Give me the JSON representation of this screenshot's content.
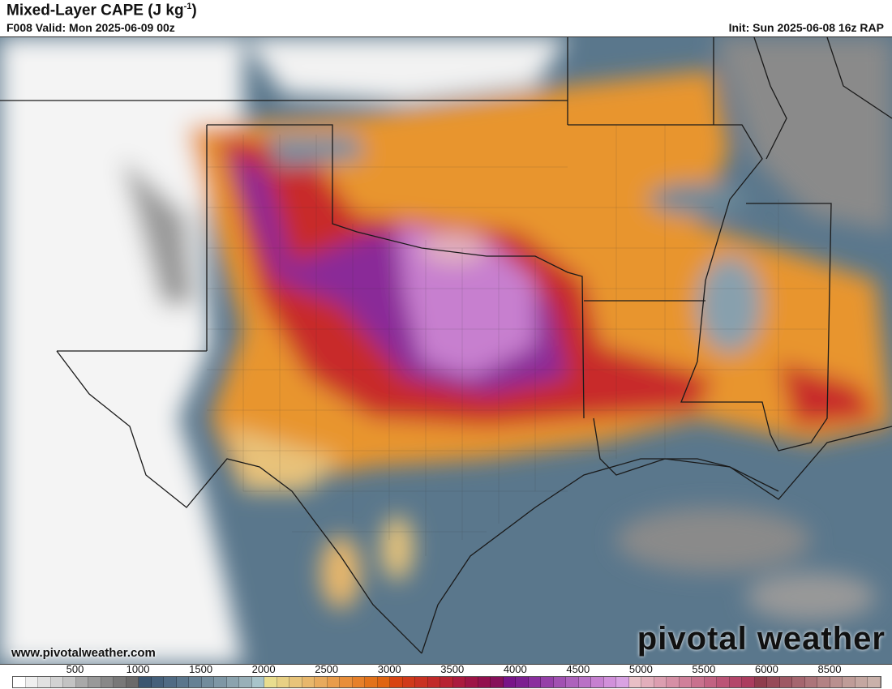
{
  "header": {
    "title": "Mixed-Layer CAPE (J kg",
    "title_sup": "-1",
    "title_end": ")",
    "valid": "F008 Valid: Mon 2025-06-09 00z",
    "init": "Init: Sun 2025-06-08 16z RAP"
  },
  "footer": {
    "url": "www.pivotalweather.com",
    "brand": "pivotal weather"
  },
  "colorbar": {
    "labels": [
      "500",
      "1000",
      "1500",
      "2000",
      "2500",
      "3000",
      "3500",
      "4000",
      "4500",
      "5000",
      "5500",
      "6000",
      "8500"
    ],
    "colors": [
      "#ffffff",
      "#efefef",
      "#e1e1e1",
      "#d2d2d2",
      "#c3c3c3",
      "#a9a9a9",
      "#999999",
      "#888888",
      "#787878",
      "#6a6a6a",
      "#3b5670",
      "#45607a",
      "#506b84",
      "#5b768c",
      "#668194",
      "#728c9c",
      "#7e97a5",
      "#8ba3ae",
      "#99b0b8",
      "#a8c4ca",
      "#e9dd8e",
      "#e8d084",
      "#e8c47a",
      "#e8b76c",
      "#e8aa5d",
      "#e89c4b",
      "#e88e3a",
      "#e6802a",
      "#e2721a",
      "#df6410",
      "#d84412",
      "#d03a1a",
      "#c93222",
      "#c12a2a",
      "#b82232",
      "#ab1a3e",
      "#9e1446",
      "#92104e",
      "#86105a",
      "#781488",
      "#7c1f90",
      "#8a2f9e",
      "#9540a8",
      "#a151b2",
      "#ad62bc",
      "#b971c6",
      "#c680d0",
      "#d190da",
      "#d9a2e2",
      "#e9bfc6",
      "#e2aebb",
      "#dc9eb0",
      "#d68fa5",
      "#d0809a",
      "#c9718e",
      "#c26282",
      "#bb5476",
      "#b4466a",
      "#ab3c5e",
      "#8f3c4c",
      "#974a58",
      "#9e5864",
      "#a5666f",
      "#ac747a",
      "#b38284",
      "#b9908f",
      "#bf9c98",
      "#c4a7a1",
      "#c9b1aa"
    ],
    "colors_meaning": "0 to 6000+ J/kg"
  },
  "map_colors": {
    "ocean": "#4f6b82",
    "land_low": "#6d8a9a",
    "border": "#222222"
  }
}
